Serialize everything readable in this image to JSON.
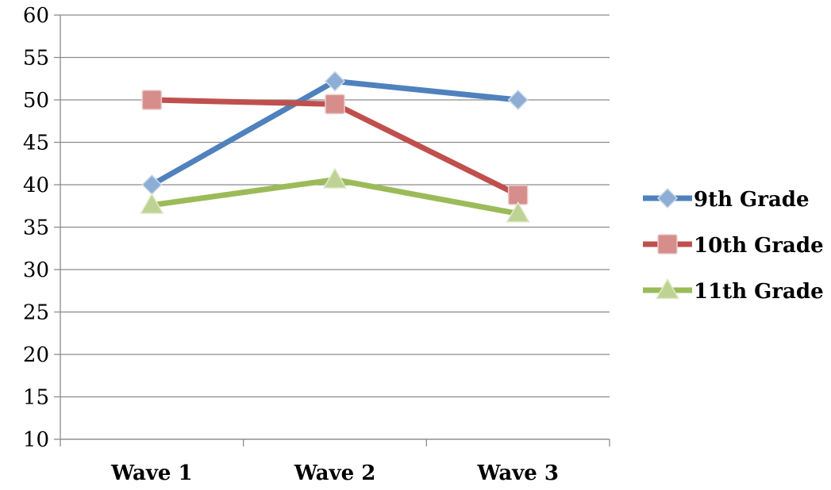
{
  "chart_data": {
    "type": "line",
    "categories": [
      "Wave 1",
      "Wave 2",
      "Wave 3"
    ],
    "series": [
      {
        "name": "9th Grade",
        "values": [
          40.0,
          52.2,
          50.0
        ],
        "color": "#4F81BD",
        "marker": "diamond"
      },
      {
        "name": "10th Grade",
        "values": [
          50.0,
          49.5,
          38.8
        ],
        "color": "#C0504D",
        "marker": "square"
      },
      {
        "name": "11th Grade",
        "values": [
          37.6,
          40.6,
          36.6
        ],
        "color": "#9BBB59",
        "marker": "triangle"
      }
    ],
    "ylim": [
      10,
      60
    ],
    "yticks": [
      10,
      15,
      20,
      25,
      30,
      35,
      40,
      45,
      50,
      55,
      60
    ],
    "grid": true,
    "legend_position": "right",
    "title": "",
    "xlabel": "",
    "ylabel": ""
  }
}
